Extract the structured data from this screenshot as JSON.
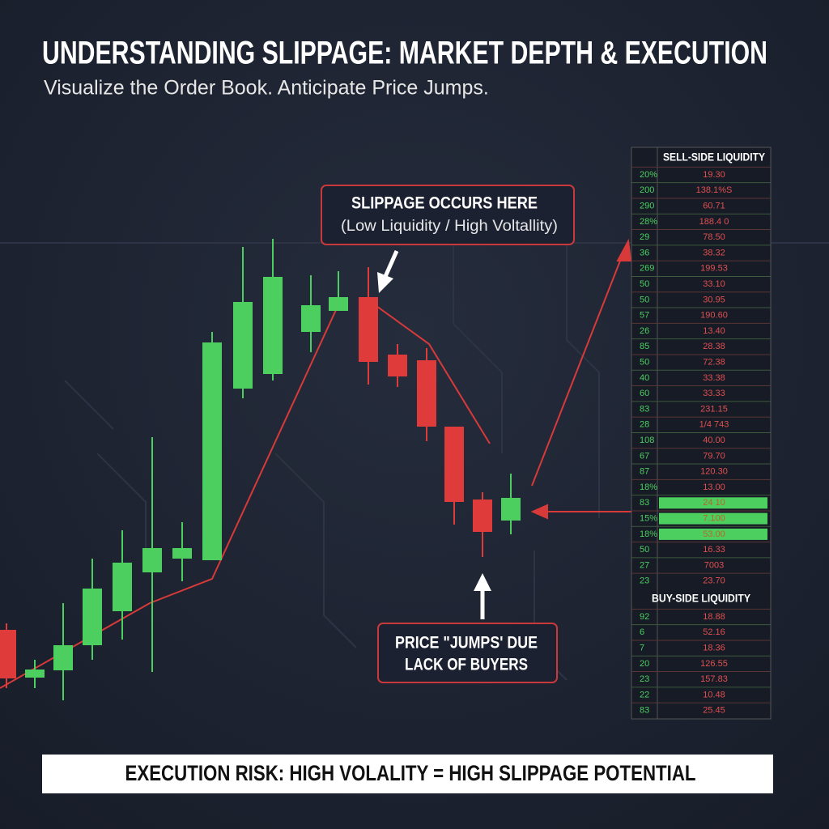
{
  "chart_data": {
    "type": "candlestick",
    "title": "UNDERSTANDING SLIPPAGE: MARKET DEPTH & EXECUTION",
    "subtitle": "Visualize the Order Book. Anticipate Price Jumps.",
    "ylim": [
      0,
      600
    ],
    "up_color": "#4ccf5f",
    "down_color": "#e03b3b",
    "open": [
      92,
      33,
      42,
      73,
      115,
      163,
      180,
      178,
      390,
      408,
      460,
      486,
      503,
      432,
      425,
      343,
      253,
      227
    ],
    "high": [
      100,
      55,
      125,
      180,
      215,
      330,
      225,
      460,
      565,
      575,
      530,
      535,
      540,
      445,
      440,
      343,
      262,
      285
    ],
    "low": [
      20,
      20,
      5,
      55,
      80,
      40,
      152,
      178,
      378,
      400,
      435,
      486,
      395,
      392,
      325,
      222,
      182,
      210
    ],
    "close": [
      32,
      43,
      73,
      143,
      175,
      193,
      193,
      447,
      497,
      528,
      493,
      503,
      423,
      405,
      343,
      250,
      213,
      255
    ],
    "annotations": {
      "slippage_title": "SLIPPAGE OCCURS HERE",
      "slippage_note": "(Low Liquidity / High Voltallity)",
      "jump_line1": "PRICE \"JUMPS' DUE",
      "jump_line2": "LACK OF BUYERS"
    },
    "footer": "EXECUTION RISK: HIGH VOLALITY = HIGH SLIPPAGE POTENTIAL"
  },
  "order_book": {
    "sell_title": "SELL-SIDE LIQUIDITY",
    "sell_rows": [
      [
        "20%",
        "19.30"
      ],
      [
        "200",
        "138.1%S"
      ],
      [
        "290",
        "60.71"
      ],
      [
        "28%",
        "188.4 0"
      ],
      [
        "29",
        "78.50"
      ],
      [
        "36",
        "38.32"
      ],
      [
        "269",
        "199.53"
      ],
      [
        "50",
        "33.10"
      ],
      [
        "50",
        "30.95"
      ],
      [
        "57",
        "190.60"
      ],
      [
        "26",
        "13.40"
      ],
      [
        "85",
        "28.38"
      ],
      [
        "50",
        "72.38"
      ],
      [
        "40",
        "33.38"
      ],
      [
        "60",
        "33.33"
      ],
      [
        "83",
        "231.15"
      ],
      [
        "28",
        "1/4 743"
      ],
      [
        "108",
        "40.00"
      ],
      [
        "67",
        "79.70"
      ],
      [
        "87",
        "120.30"
      ],
      [
        "18%",
        "13.00"
      ],
      [
        "83",
        "24 10"
      ],
      [
        "15%",
        "7.100"
      ],
      [
        "18%",
        "53.00"
      ],
      [
        "50",
        "16.33"
      ],
      [
        "27",
        "7003"
      ],
      [
        "23",
        "23.70"
      ]
    ],
    "highlighted_rows": [
      21,
      22,
      23
    ],
    "buy_title": "BUY-SIDE LIQUIDITY",
    "buy_rows": [
      [
        "92",
        "18.88"
      ],
      [
        "6",
        "52.16"
      ],
      [
        "7",
        "18.36"
      ],
      [
        "20",
        "126.55"
      ],
      [
        "23",
        "157.83"
      ],
      [
        "22",
        "10.48"
      ],
      [
        "83",
        "25.45"
      ]
    ]
  }
}
